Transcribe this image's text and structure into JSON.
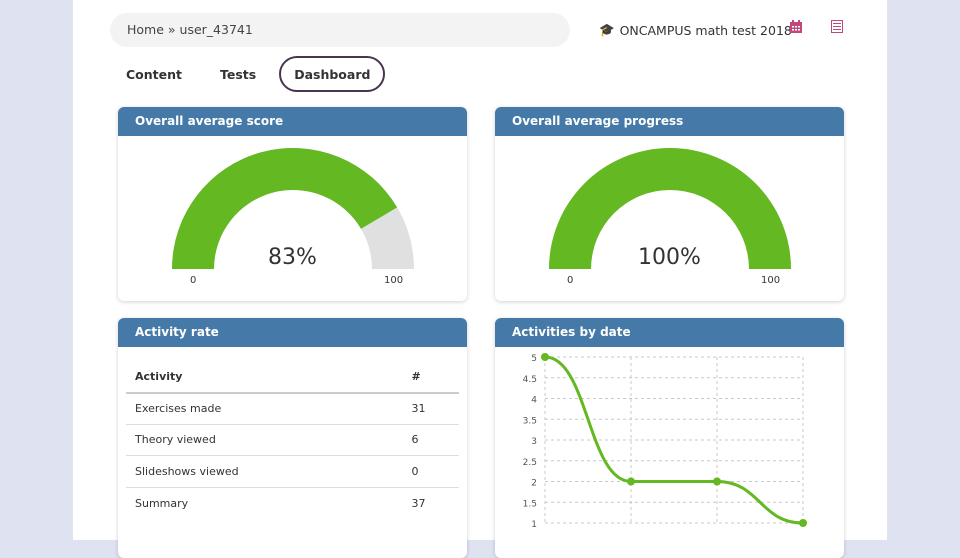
{
  "breadcrumb": {
    "home": "Home",
    "sep": "»",
    "user": "user_43741"
  },
  "course": {
    "icon": "graduation-cap-icon",
    "title": "ONCAMPUS math test 2018"
  },
  "header_icons": [
    "calendar-icon",
    "list-icon"
  ],
  "tabs": [
    {
      "label": "Content"
    },
    {
      "label": "Tests"
    },
    {
      "label": "Dashboard",
      "active": true
    }
  ],
  "score": {
    "title": "Overall average score",
    "value": "83%",
    "fraction": 0.83,
    "min": "0",
    "max": "100"
  },
  "progress": {
    "title": "Overall average progress",
    "value": "100%",
    "fraction": 1.0,
    "min": "0",
    "max": "100"
  },
  "activity": {
    "title": "Activity rate",
    "headers": [
      "Activity",
      "#"
    ],
    "rows": [
      [
        "Exercises made",
        "31"
      ],
      [
        "Theory viewed",
        "6"
      ],
      [
        "Slideshows viewed",
        "0"
      ],
      [
        "Summary",
        "37"
      ]
    ]
  },
  "colors": {
    "accent": "#64b821",
    "header": "#457aa8",
    "gauge_bg": "#e0e0e0",
    "icon": "#c2477a"
  },
  "chart_data": {
    "type": "line",
    "title": "Activities by date",
    "y": [
      5,
      2,
      2,
      1
    ],
    "yticks": [
      "1",
      "1.5",
      "2",
      "2.5",
      "3",
      "3.5",
      "4",
      "4.5",
      "5"
    ],
    "ylim": [
      1,
      5
    ],
    "grid": true,
    "color": "#64b821"
  }
}
